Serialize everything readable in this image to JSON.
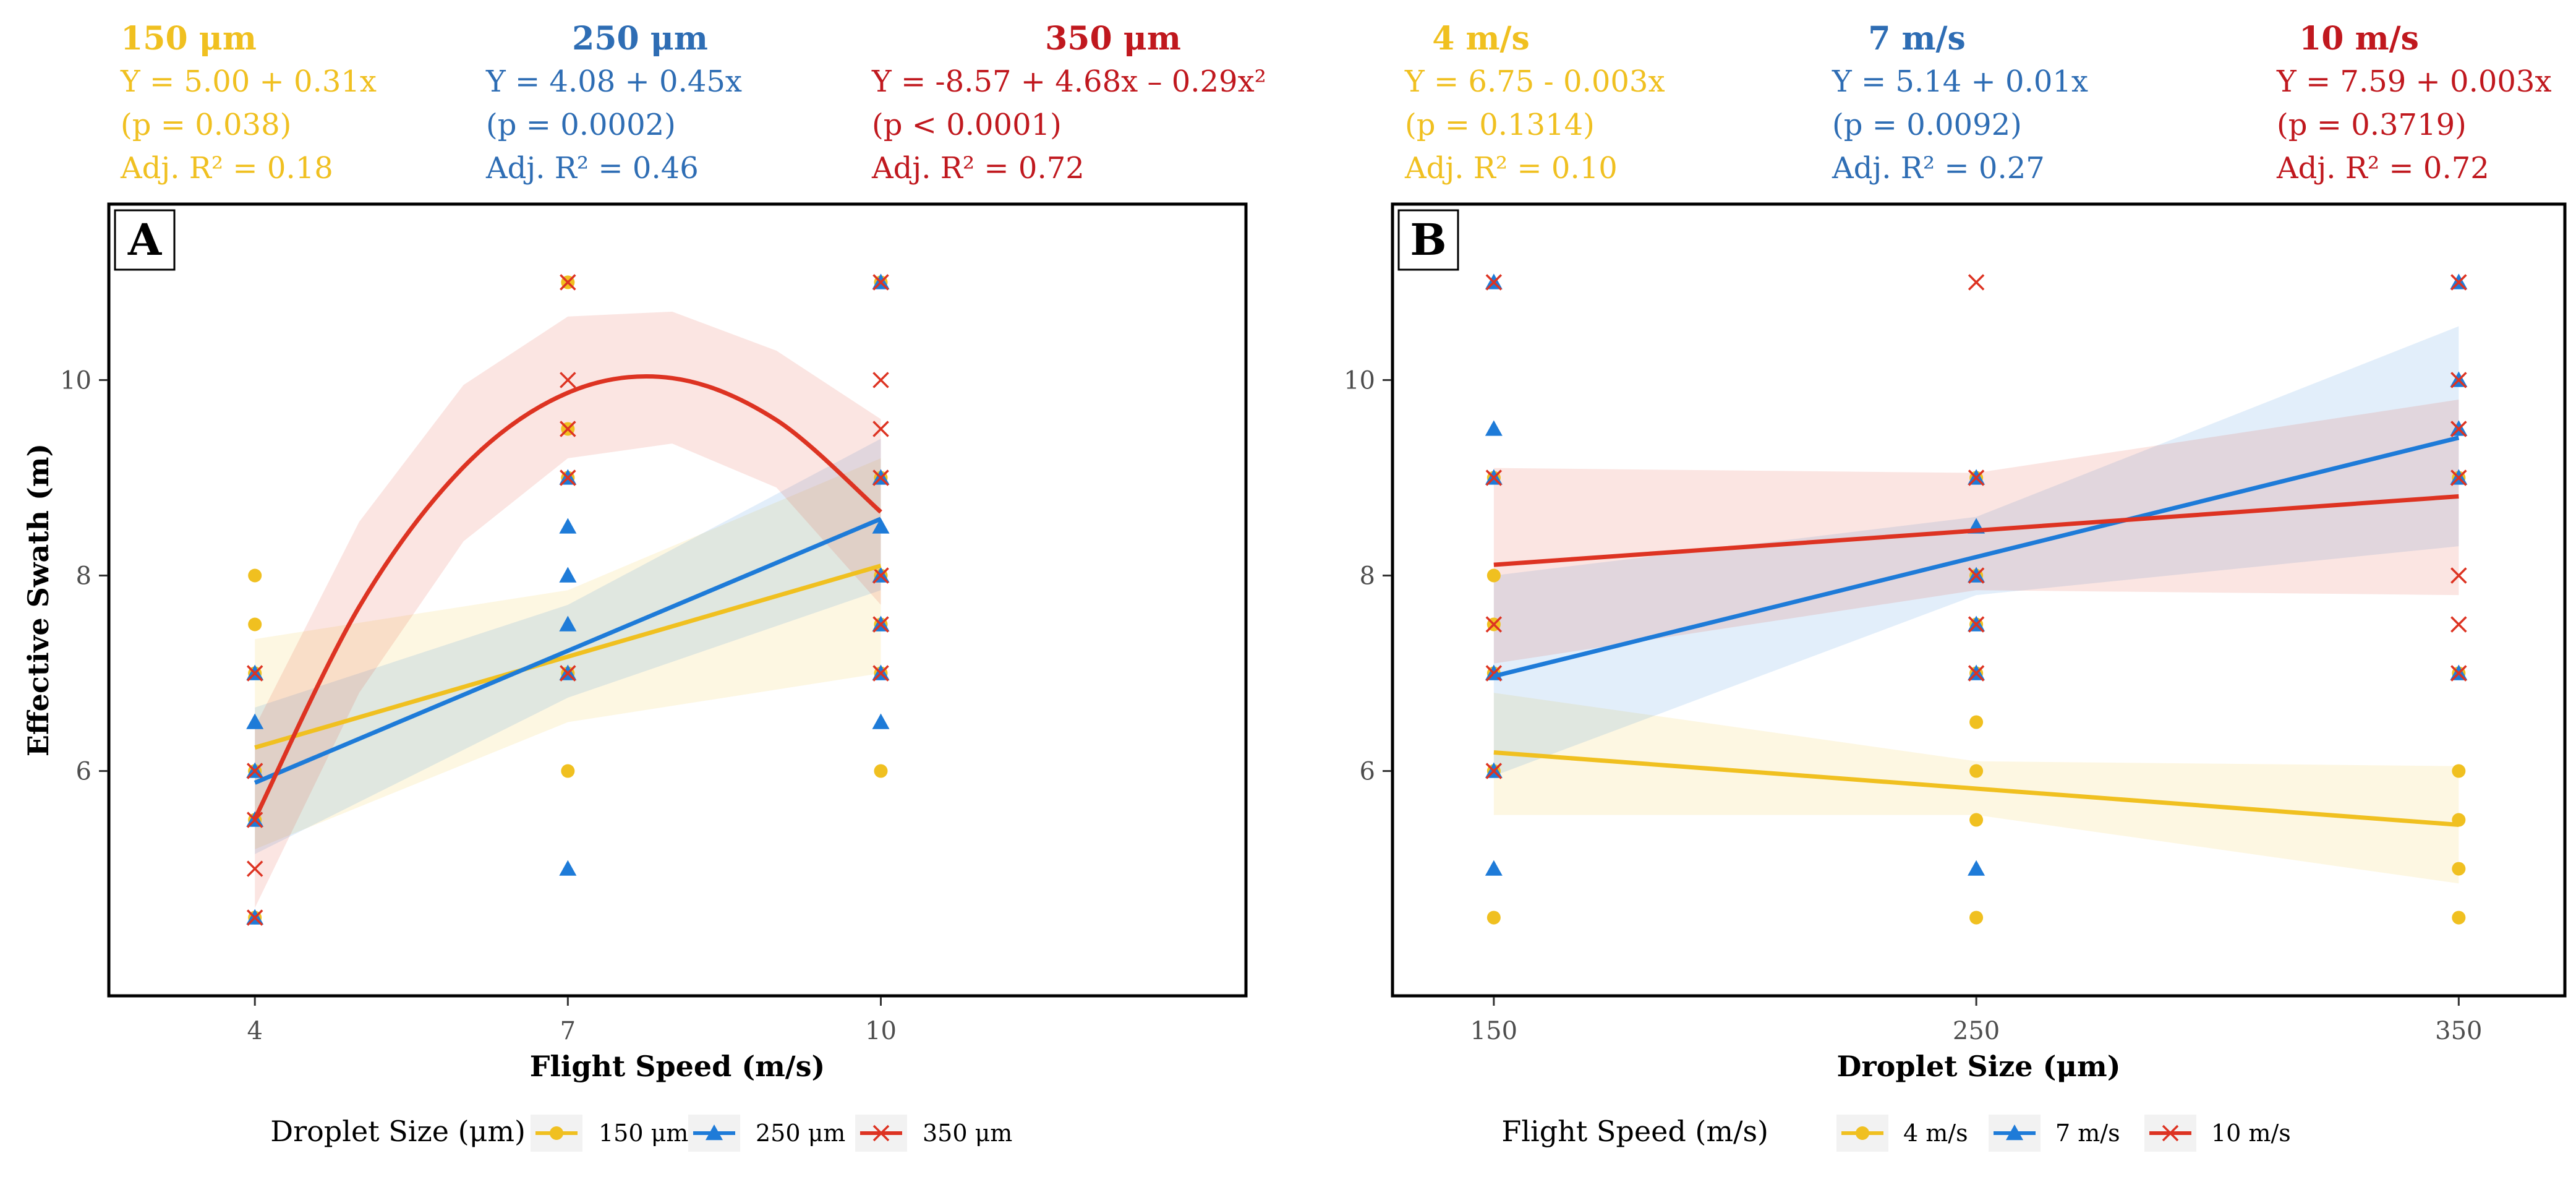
{
  "colors": {
    "s1": "#F0C020",
    "s2": "#1E7BD8",
    "s3": "#DD3322",
    "t1": "#F0C020",
    "t2": "#2E6DB4",
    "t3": "#C0181E"
  },
  "chart_data": [
    {
      "type": "scatter",
      "panel_letter": "A",
      "xlabel": "Flight Speed (m/s)",
      "ylabel": "Effective Swath (m)",
      "x_ticks": [
        "4",
        "7",
        "10"
      ],
      "y_ticks": [
        "6",
        "8",
        "10"
      ],
      "xlim": [
        2.6,
        13.5
      ],
      "ylim": [
        3.7,
        11.8
      ],
      "legend_title": "Droplet Size (μm)",
      "series": [
        {
          "name": "150 μm",
          "marker": "circle",
          "annotation": {
            "title": "150 μm",
            "eq": "Y = 5.00 + 0.31x",
            "p": "(p = 0.038)",
            "r2": "Adj. R² = 0.18"
          },
          "points": [
            [
              4,
              8
            ],
            [
              4,
              7.5
            ],
            [
              4,
              7
            ],
            [
              4,
              6
            ],
            [
              4,
              5.5
            ],
            [
              4,
              4.5
            ],
            [
              7,
              11
            ],
            [
              7,
              9.5
            ],
            [
              7,
              9
            ],
            [
              7,
              7
            ],
            [
              7,
              6
            ],
            [
              10,
              11
            ],
            [
              10,
              9
            ],
            [
              10,
              8
            ],
            [
              10,
              7.5
            ],
            [
              10,
              7
            ],
            [
              10,
              6
            ]
          ],
          "fit": {
            "x": [
              4,
              7,
              10
            ],
            "y": [
              6.24,
              7.17,
              8.1
            ]
          },
          "band": {
            "x": [
              4,
              7,
              10
            ],
            "lower": [
              5.2,
              6.5,
              7.0
            ],
            "upper": [
              7.35,
              7.85,
              9.2
            ]
          }
        },
        {
          "name": "250 μm",
          "marker": "triangle",
          "annotation": {
            "title": "250 μm",
            "eq": "Y = 4.08 + 0.45x",
            "p": "(p = 0.0002)",
            "r2": "Adj. R² = 0.46"
          },
          "points": [
            [
              4,
              7
            ],
            [
              4,
              6.5
            ],
            [
              4,
              6
            ],
            [
              4,
              5.5
            ],
            [
              4,
              4.5
            ],
            [
              7,
              9
            ],
            [
              7,
              8.5
            ],
            [
              7,
              8
            ],
            [
              7,
              7.5
            ],
            [
              7,
              7
            ],
            [
              7,
              5
            ],
            [
              10,
              11
            ],
            [
              10,
              9
            ],
            [
              10,
              8.5
            ],
            [
              10,
              8
            ],
            [
              10,
              7.5
            ],
            [
              10,
              7
            ],
            [
              10,
              6.5
            ]
          ],
          "fit": {
            "x": [
              4,
              7,
              10
            ],
            "y": [
              5.88,
              7.23,
              8.58
            ]
          },
          "band": {
            "x": [
              4,
              7,
              10
            ],
            "lower": [
              5.15,
              6.75,
              7.85
            ],
            "upper": [
              6.65,
              7.7,
              9.4
            ]
          }
        },
        {
          "name": "350 μm",
          "marker": "cross",
          "annotation": {
            "title": "350 μm",
            "eq": "Y = -8.57 + 4.68x – 0.29x²",
            "p": "(p <  0.0001)",
            "r2": "Adj. R² = 0.72"
          },
          "points": [
            [
              4,
              7
            ],
            [
              4,
              6
            ],
            [
              4,
              5.5
            ],
            [
              4,
              5
            ],
            [
              4,
              4.5
            ],
            [
              7,
              11
            ],
            [
              7,
              10
            ],
            [
              7,
              9.5
            ],
            [
              7,
              9
            ],
            [
              7,
              7
            ],
            [
              10,
              11
            ],
            [
              10,
              10
            ],
            [
              10,
              9.5
            ],
            [
              10,
              9
            ],
            [
              10,
              8
            ],
            [
              10,
              7.5
            ],
            [
              10,
              7
            ]
          ],
          "fit": {
            "x": [
              4,
              5,
              6,
              7,
              8,
              9,
              10
            ],
            "y": [
              5.51,
              7.68,
              9.11,
              9.87,
              10.02,
              9.59,
              8.65
            ]
          },
          "band": {
            "x": [
              4,
              5,
              6,
              7,
              8,
              9,
              10
            ],
            "lower": [
              4.6,
              6.8,
              8.35,
              9.2,
              9.35,
              8.9,
              7.7
            ],
            "upper": [
              6.45,
              8.55,
              9.95,
              10.65,
              10.7,
              10.3,
              9.6
            ]
          }
        }
      ]
    },
    {
      "type": "scatter",
      "panel_letter": "B",
      "xlabel": "Droplet Size (μm)",
      "ylabel": "",
      "x_ticks": [
        "150",
        "250",
        "350"
      ],
      "y_ticks": [
        "6",
        "8",
        "10"
      ],
      "xlim": [
        129,
        372
      ],
      "ylim": [
        3.7,
        11.8
      ],
      "legend_title": "Flight Speed (m/s)",
      "series": [
        {
          "name": "4 m/s",
          "marker": "circle",
          "annotation": {
            "title": "4 m/s",
            "eq": "Y = 6.75 - 0.003x",
            "p": "(p = 0.1314)",
            "r2": "Adj. R² = 0.10"
          },
          "points": [
            [
              150,
              9
            ],
            [
              150,
              8
            ],
            [
              150,
              7.5
            ],
            [
              150,
              7
            ],
            [
              150,
              6
            ],
            [
              150,
              4.5
            ],
            [
              250,
              9
            ],
            [
              250,
              8
            ],
            [
              250,
              7.5
            ],
            [
              250,
              7
            ],
            [
              250,
              6.5
            ],
            [
              250,
              6
            ],
            [
              250,
              5.5
            ],
            [
              250,
              4.5
            ],
            [
              350,
              9
            ],
            [
              350,
              7
            ],
            [
              350,
              6
            ],
            [
              350,
              5.5
            ],
            [
              350,
              5
            ],
            [
              350,
              4.5
            ]
          ],
          "fit": {
            "x": [
              150,
              250,
              350
            ],
            "y": [
              6.19,
              5.82,
              5.45
            ]
          },
          "band": {
            "x": [
              150,
              250,
              350
            ],
            "lower": [
              5.55,
              5.55,
              4.85
            ],
            "upper": [
              6.8,
              6.1,
              6.05
            ]
          }
        },
        {
          "name": "7 m/s",
          "marker": "triangle",
          "annotation": {
            "title": "7 m/s",
            "eq": "Y = 5.14 + 0.01x",
            "p": "(p = 0.0092)",
            "r2": "Adj. R² = 0.27"
          },
          "points": [
            [
              150,
              11
            ],
            [
              150,
              9.5
            ],
            [
              150,
              9
            ],
            [
              150,
              7
            ],
            [
              150,
              6
            ],
            [
              150,
              5
            ],
            [
              250,
              9
            ],
            [
              250,
              8.5
            ],
            [
              250,
              8
            ],
            [
              250,
              7.5
            ],
            [
              250,
              7
            ],
            [
              250,
              5
            ],
            [
              350,
              11
            ],
            [
              350,
              10
            ],
            [
              350,
              9.5
            ],
            [
              350,
              9
            ],
            [
              350,
              7
            ]
          ],
          "fit": {
            "x": [
              150,
              250,
              350
            ],
            "y": [
              6.97,
              8.19,
              9.41
            ]
          },
          "band": {
            "x": [
              150,
              250,
              350
            ],
            "lower": [
              5.95,
              7.8,
              8.3
            ],
            "upper": [
              8.0,
              8.6,
              10.55
            ]
          }
        },
        {
          "name": "10 m/s",
          "marker": "cross",
          "annotation": {
            "title": "10 m/s",
            "eq": "Y = 7.59 + 0.003x",
            "p": "(p = 0.3719)",
            "r2": "Adj. R² = 0.72"
          },
          "points": [
            [
              150,
              11
            ],
            [
              150,
              9
            ],
            [
              150,
              7.5
            ],
            [
              150,
              7
            ],
            [
              150,
              6
            ],
            [
              250,
              11
            ],
            [
              250,
              9
            ],
            [
              250,
              8
            ],
            [
              250,
              7.5
            ],
            [
              250,
              7
            ],
            [
              350,
              11
            ],
            [
              350,
              10
            ],
            [
              350,
              9.5
            ],
            [
              350,
              9
            ],
            [
              350,
              8
            ],
            [
              350,
              7.5
            ],
            [
              350,
              7
            ]
          ],
          "fit": {
            "x": [
              150,
              250,
              350
            ],
            "y": [
              8.11,
              8.46,
              8.81
            ]
          },
          "band": {
            "x": [
              150,
              250,
              350
            ],
            "lower": [
              7.1,
              7.85,
              7.8
            ],
            "upper": [
              9.1,
              9.05,
              9.8
            ]
          }
        }
      ]
    }
  ]
}
